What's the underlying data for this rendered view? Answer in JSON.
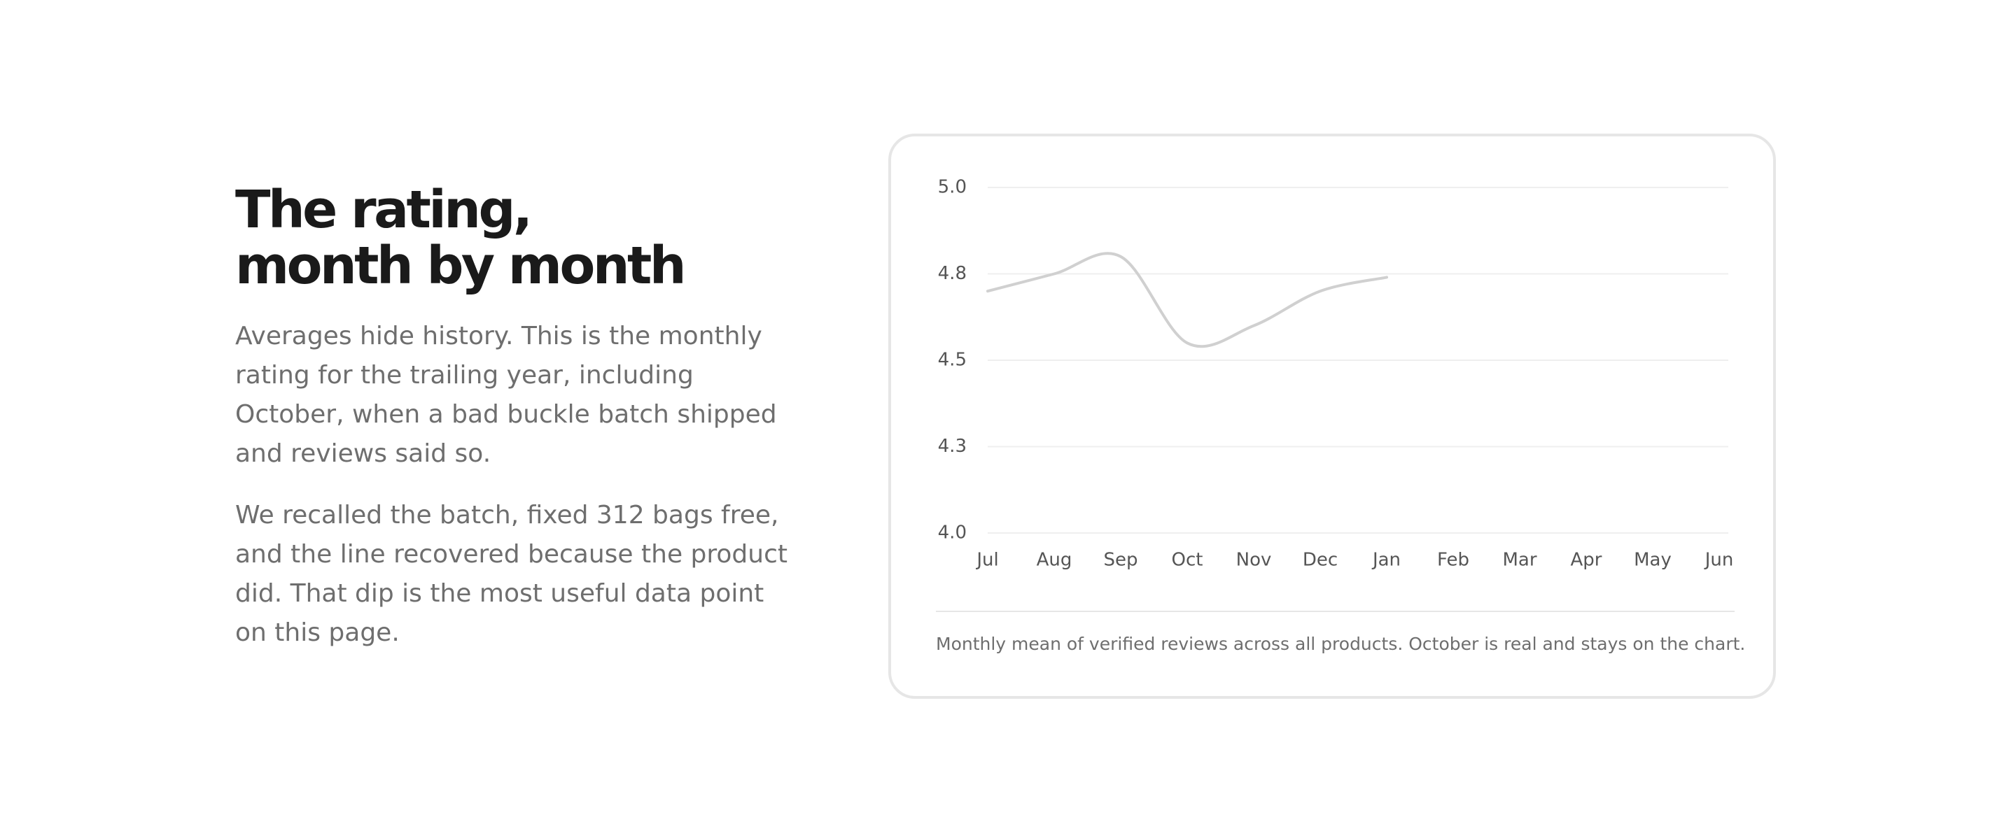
{
  "heading": [
    "The rating,",
    "month by month"
  ],
  "paragraphs": [
    "Averages hide history. This is the monthly rating for the trailing year, including October, when a bad buckle batch shipped and reviews said so.",
    "We recalled the batch, fixed 312 bags free, and the line recovered because the product did. That dip is the most useful data point on this page."
  ],
  "chart_data": {
    "type": "line",
    "categories": [
      "Jul",
      "Aug",
      "Sep",
      "Oct",
      "Nov",
      "Dec",
      "Jan",
      "Feb",
      "Mar",
      "Apr",
      "May",
      "Jun"
    ],
    "values": [
      4.7,
      4.75,
      4.8,
      4.55,
      4.6,
      4.7,
      4.74,
      null,
      null,
      null,
      null,
      null
    ],
    "color": "#d0d0d0",
    "ylim": [
      4,
      5
    ],
    "yticks": [
      {
        "value": 5,
        "label": "5.0"
      },
      {
        "value": 4.75,
        "label": "4.8"
      },
      4.5,
      {
        "value": 4.25,
        "label": "4.3"
      },
      {
        "value": 4,
        "label": "4.0"
      }
    ],
    "grid": true,
    "caption": "Monthly mean of verified reviews across all products. October is real and stays on the chart."
  }
}
